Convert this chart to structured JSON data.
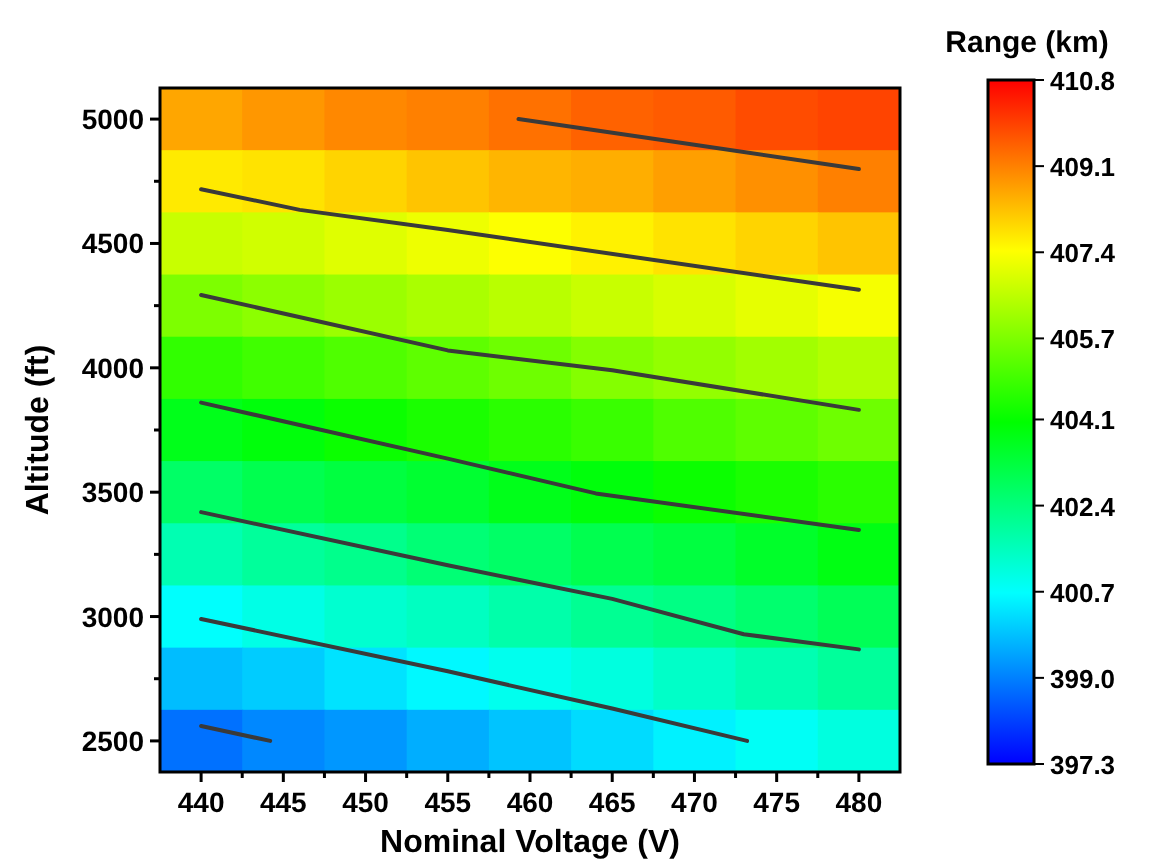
{
  "chart_data": {
    "type": "heatmap",
    "xlabel": "Nominal Voltage (V)",
    "ylabel": "Altitude (ft)",
    "clabel": "Range (km)",
    "x": [
      440,
      445,
      450,
      455,
      460,
      465,
      470,
      475,
      480
    ],
    "xlim": [
      437.5,
      482.5
    ],
    "ylim": [
      2375,
      5125
    ],
    "xticks": [
      440,
      {
        "value": 442.5,
        "label": null
      },
      445,
      {
        "value": 447.5,
        "label": null
      },
      450,
      {
        "value": 452.5,
        "label": null
      },
      455,
      {
        "value": 457.5,
        "label": null
      },
      460,
      {
        "value": 462.5,
        "label": null
      },
      465,
      {
        "value": 467.5,
        "label": null
      },
      470,
      {
        "value": 472.5,
        "label": null
      },
      475,
      {
        "value": 477.5,
        "label": null
      },
      480
    ],
    "yticks": [
      2500,
      {
        "value": 2750,
        "label": null
      },
      3000,
      {
        "value": 3250,
        "label": null
      },
      3500,
      {
        "value": 3750,
        "label": null
      },
      4000,
      {
        "value": 4250,
        "label": null
      },
      4500,
      {
        "value": 4750,
        "label": null
      },
      5000
    ],
    "cells": [
      [
        408.6,
        408.8,
        409.0,
        409.1,
        409.3,
        409.5,
        409.6,
        409.8,
        409.9
      ],
      [
        407.7,
        407.8,
        408.0,
        408.2,
        408.4,
        408.5,
        408.7,
        408.9,
        409.1
      ],
      [
        406.7,
        406.8,
        407.0,
        407.2,
        407.4,
        407.6,
        407.8,
        408.0,
        408.2
      ],
      [
        405.7,
        405.9,
        406.1,
        406.3,
        406.5,
        406.7,
        406.9,
        407.1,
        407.3
      ],
      [
        404.7,
        404.9,
        405.1,
        405.3,
        405.5,
        405.8,
        406.0,
        406.2,
        406.4
      ],
      [
        403.7,
        403.9,
        404.2,
        404.4,
        404.6,
        404.8,
        405.1,
        405.3,
        405.5
      ],
      [
        402.7,
        403.0,
        403.2,
        403.4,
        403.7,
        403.9,
        404.2,
        404.4,
        404.6
      ],
      [
        401.7,
        402.0,
        402.2,
        402.5,
        402.7,
        403.0,
        403.2,
        403.5,
        403.8
      ],
      [
        400.7,
        401.0,
        401.3,
        401.5,
        401.8,
        402.1,
        402.3,
        402.6,
        402.9
      ],
      [
        399.8,
        400.0,
        400.3,
        400.6,
        400.9,
        401.1,
        401.4,
        401.7,
        402.0
      ],
      [
        398.8,
        399.1,
        399.3,
        399.6,
        399.9,
        400.2,
        400.5,
        400.8,
        401.1
      ]
    ],
    "series": [
      {
        "type": "line",
        "color": "#3a3a3a",
        "x": [
          440,
          444.2
        ],
        "values": [
          2560,
          2500
        ]
      },
      {
        "type": "line",
        "color": "#3a3a3a",
        "x": [
          440,
          455,
          465,
          473.2
        ],
        "values": [
          2990,
          2780,
          2630,
          2500
        ]
      },
      {
        "type": "line",
        "color": "#3a3a3a",
        "x": [
          440,
          455,
          465,
          473,
          480
        ],
        "values": [
          3420,
          3206,
          3071,
          2929,
          2868
        ]
      },
      {
        "type": "line",
        "color": "#3a3a3a",
        "x": [
          440,
          455,
          464,
          480
        ],
        "values": [
          3860,
          3635,
          3495,
          3348
        ]
      },
      {
        "type": "line",
        "color": "#3a3a3a",
        "x": [
          440,
          455,
          465,
          480
        ],
        "values": [
          4293,
          4070,
          3990,
          3831
        ]
      },
      {
        "type": "line",
        "color": "#3a3a3a",
        "x": [
          440,
          446,
          455,
          480
        ],
        "values": [
          4718,
          4635,
          4554,
          4314
        ]
      },
      {
        "type": "line",
        "color": "#3a3a3a",
        "x": [
          459.3,
          470,
          480
        ],
        "values": [
          5000,
          4897,
          4799
        ]
      }
    ],
    "clim": [
      397.3,
      410.8
    ],
    "cticks": [
      397.3,
      {
        "value": 399,
        "label": "399.0"
      },
      400.7,
      402.4,
      404.1,
      405.7,
      407.4,
      409.1,
      410.8
    ]
  }
}
